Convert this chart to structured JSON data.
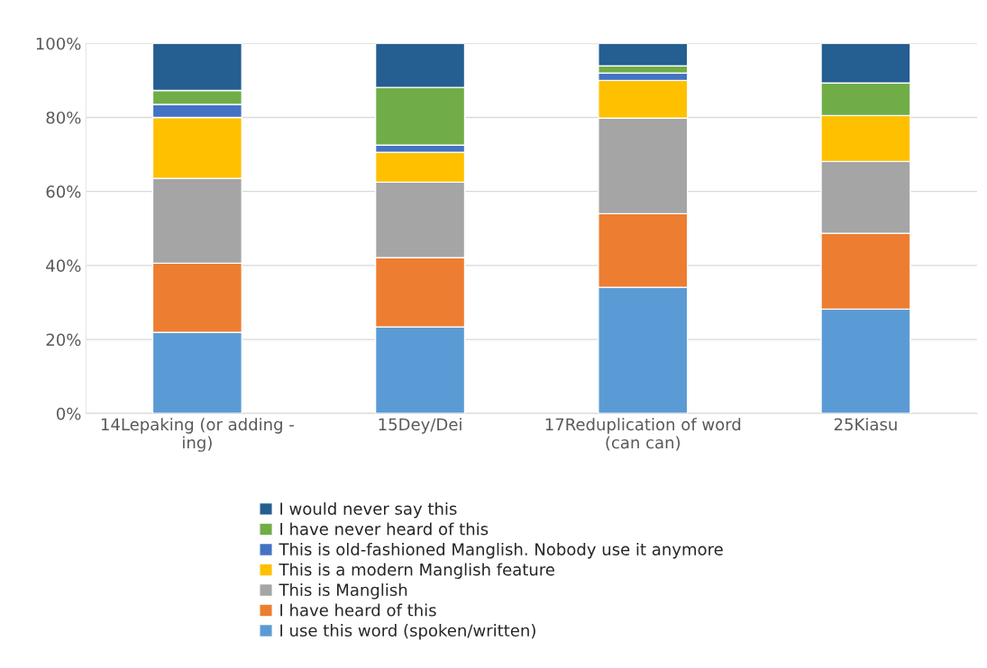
{
  "chart_data": {
    "type": "bar",
    "stacked": true,
    "categories": [
      "14Lepaking (or adding -\ning)",
      "15Dey/Dei",
      "17Reduplication of word\n(can can)",
      "25Kiasu"
    ],
    "series": [
      {
        "name": "I use this word (spoken/written)",
        "color": "#5b9bd5",
        "values": [
          21.9,
          23.4,
          34.1,
          28.2
        ]
      },
      {
        "name": "I have heard of this",
        "color": "#ed7d31",
        "values": [
          18.7,
          18.7,
          19.9,
          20.5
        ]
      },
      {
        "name": "This is Manglish",
        "color": "#a5a5a5",
        "values": [
          22.9,
          20.4,
          25.8,
          19.4
        ]
      },
      {
        "name": "This is a modern Manglish feature",
        "color": "#ffc000",
        "values": [
          16.5,
          8.1,
          10.2,
          12.4
        ]
      },
      {
        "name": "This is old-fashioned Manglish. Nobody use it anymore",
        "color": "#4472c4",
        "values": [
          3.5,
          1.9,
          2.0,
          0
        ]
      },
      {
        "name": "I have never heard of this",
        "color": "#70ad47",
        "values": [
          3.8,
          15.6,
          1.9,
          8.8
        ]
      },
      {
        "name": "I would never say this",
        "color": "#255e91",
        "values": [
          12.7,
          11.9,
          6.1,
          10.7
        ]
      }
    ],
    "ylim": [
      0,
      100
    ],
    "yticks": [
      {
        "value": 0,
        "label": "0%"
      },
      {
        "value": 20,
        "label": "20%"
      },
      {
        "value": 40,
        "label": "40%"
      },
      {
        "value": 60,
        "label": "60%"
      },
      {
        "value": 80,
        "label": "80%"
      },
      {
        "value": 100,
        "label": "100%"
      }
    ],
    "grid": "y",
    "legend": "bottom"
  }
}
